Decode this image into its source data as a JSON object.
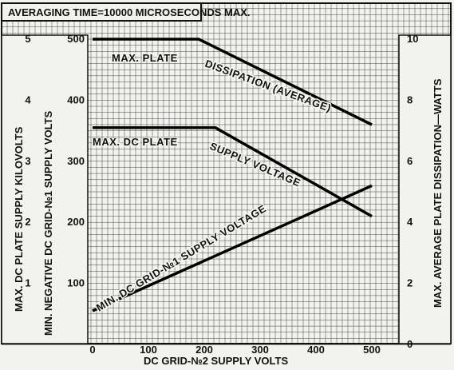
{
  "chart_data": {
    "type": "line",
    "title": "AVERAGING TIME=10000 MICROSECONDS MAX.",
    "xlabel": "DC GRID-№2 SUPPLY VOLTS",
    "xlim": [
      0,
      500
    ],
    "x_ticks": [
      "0",
      "100",
      "200",
      "300",
      "400",
      "500"
    ],
    "y_left_outer": {
      "label": "MAX. DC PLATE SUPPLY KILOVOLTS",
      "lim": [
        0,
        5
      ],
      "ticks": [
        "1",
        "2",
        "3",
        "4",
        "5"
      ]
    },
    "y_left_inner": {
      "label": "MIN. NEGATIVE DC GRID-№1 SUPPLY VOLTS",
      "lim": [
        0,
        500
      ],
      "ticks": [
        "100",
        "200",
        "300",
        "400",
        "500"
      ]
    },
    "y_right": {
      "label": "MAX. AVERAGE PLATE DISSIPATION—WATTS",
      "lim": [
        0,
        10
      ],
      "ticks": [
        "0",
        "2",
        "4",
        "6",
        "8",
        "10"
      ]
    },
    "grid": true,
    "series": [
      {
        "name": "MAX. PLATE DISSIPATION (AVERAGE)",
        "axis": "y_right",
        "x": [
          0,
          190,
          500
        ],
        "y": [
          10,
          10,
          7.2
        ],
        "label_parts": [
          "MAX. PLATE",
          "DISSIPATION (AVERAGE)"
        ]
      },
      {
        "name": "MAX. DC PLATE SUPPLY VOLTAGE",
        "axis": "y_left_outer",
        "x": [
          0,
          220,
          500
        ],
        "y": [
          3.55,
          3.55,
          2.1
        ],
        "label_parts": [
          "MAX. DC PLATE",
          "SUPPLY VOLTAGE"
        ]
      },
      {
        "name": "MIN. DC GRID-№1 SUPPLY VOLTAGE",
        "axis": "y_left_inner",
        "x": [
          0,
          500
        ],
        "y": [
          55,
          260
        ],
        "label_parts": [
          "MIN. DC GRID-№1 SUPPLY VOLTAGE"
        ]
      }
    ]
  }
}
